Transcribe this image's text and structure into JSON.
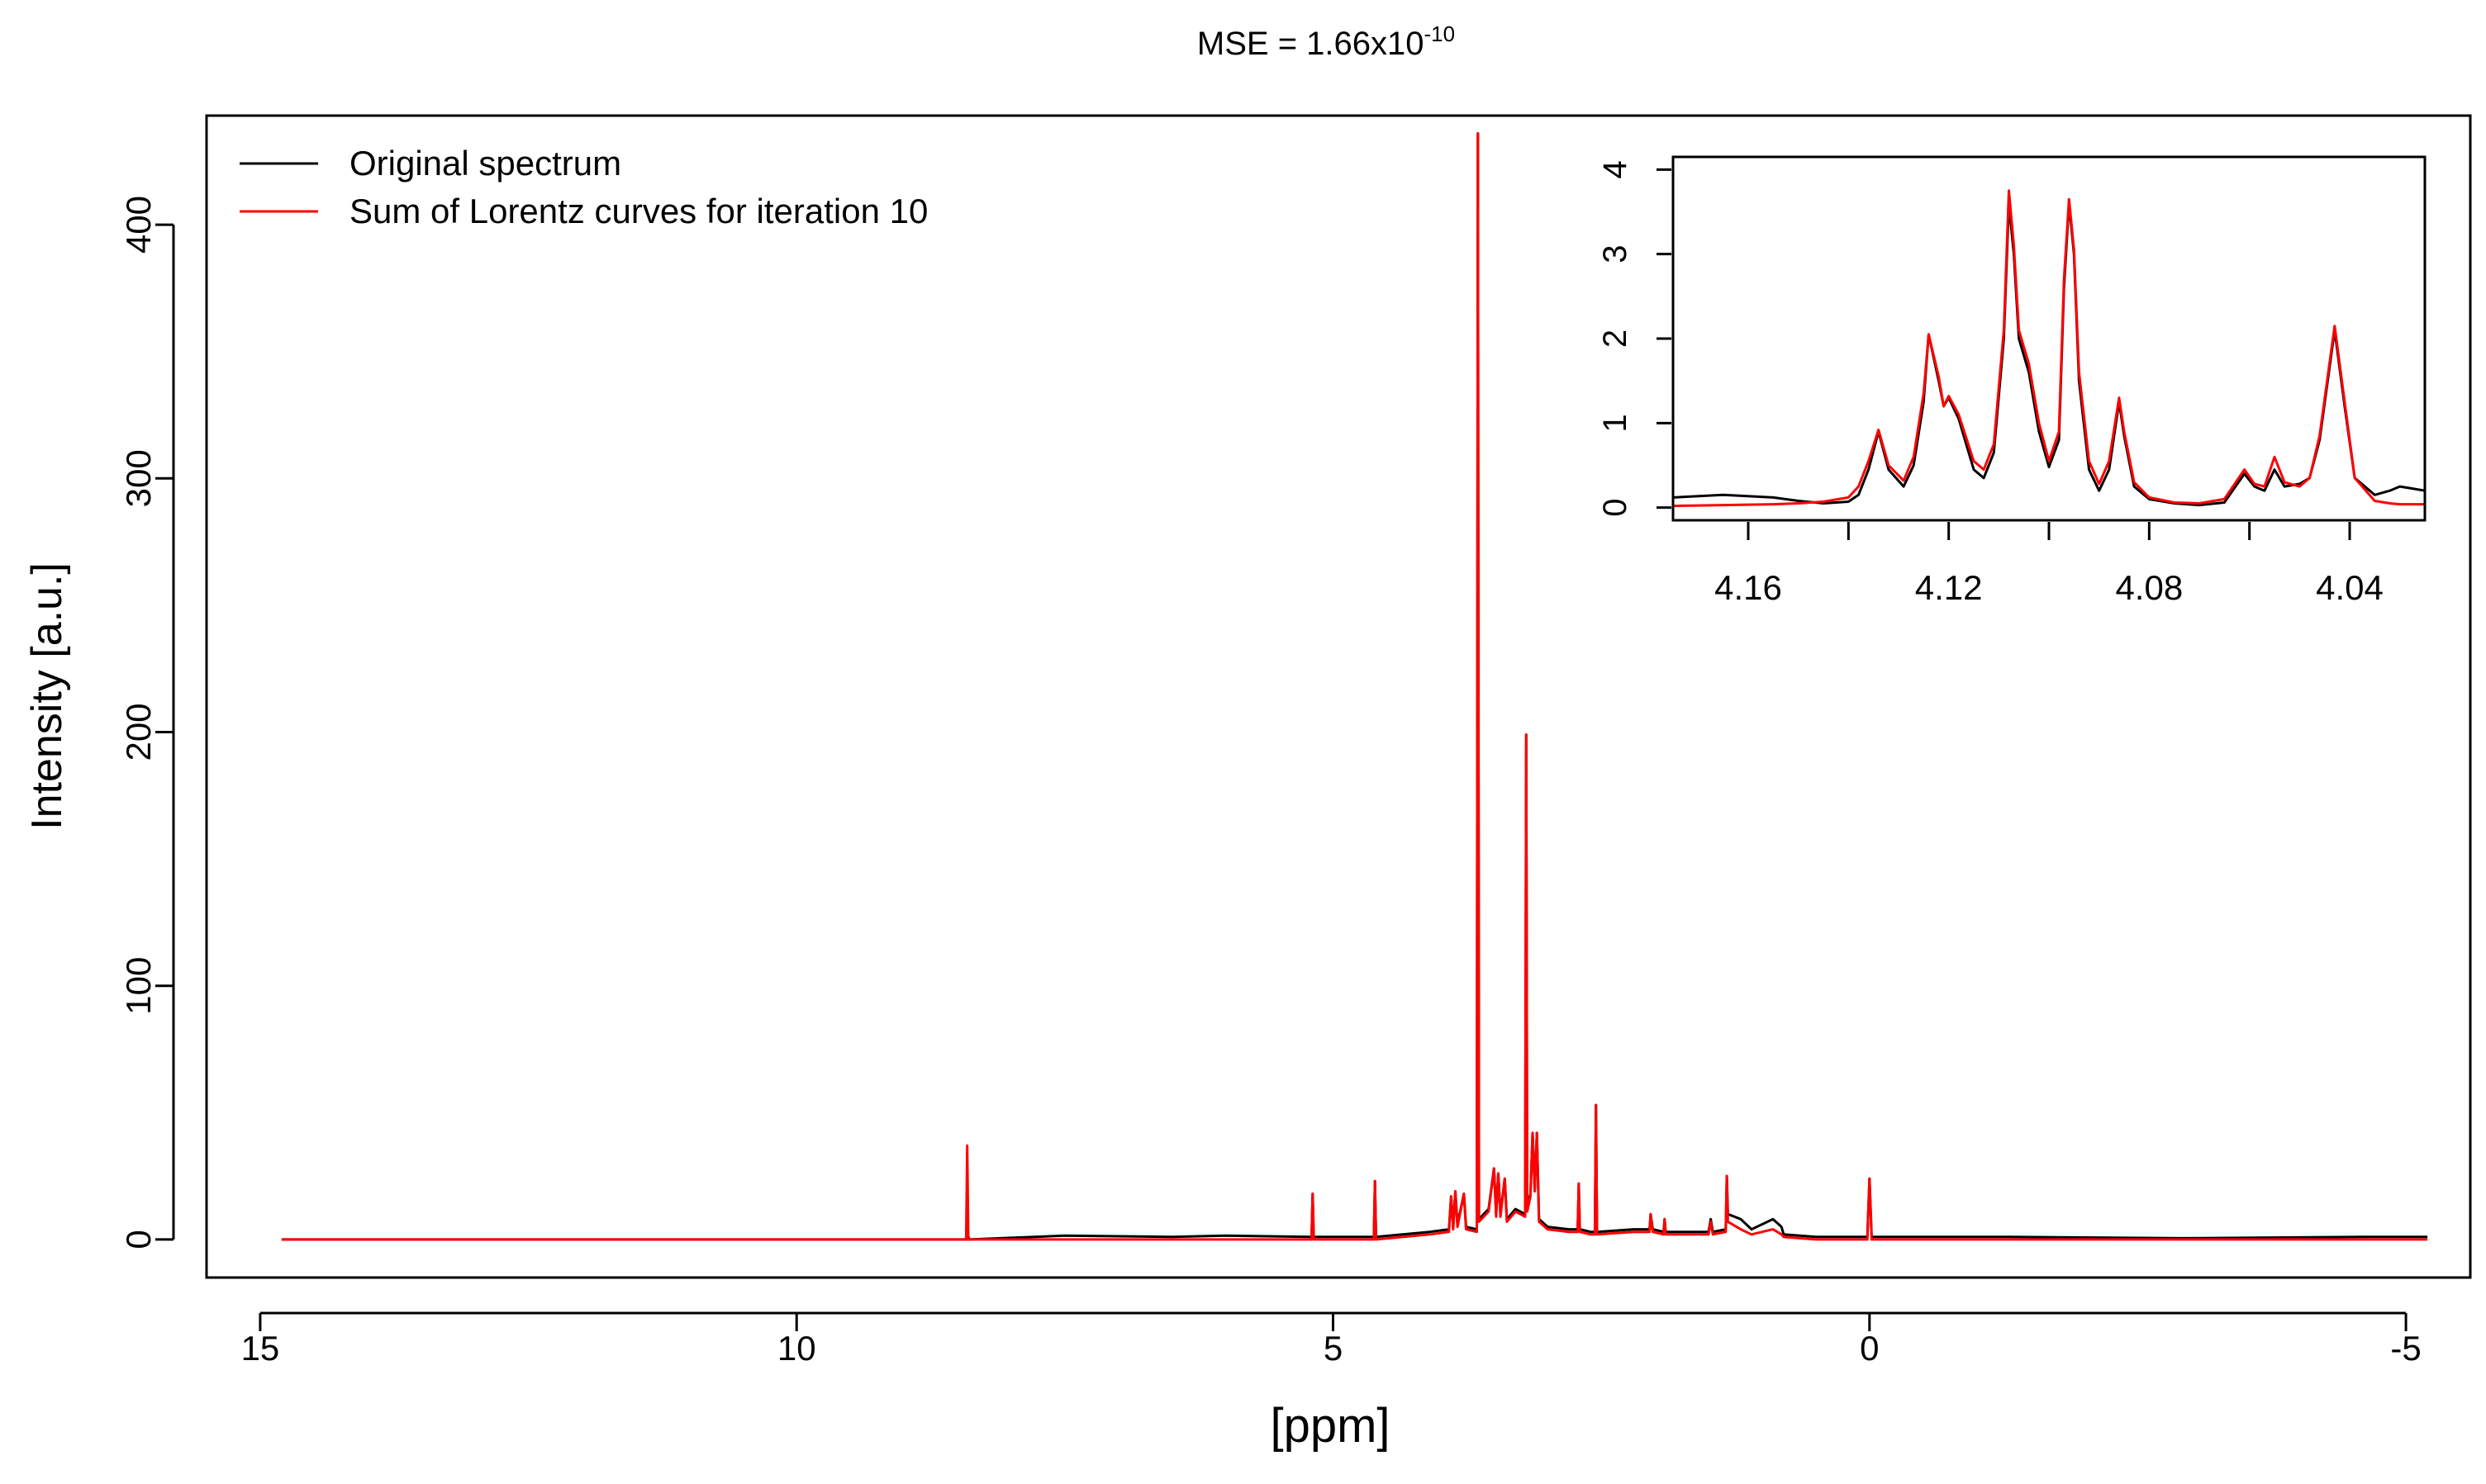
{
  "figure": {
    "title_prefix": "MSE = 1.66x10",
    "title_exponent": "-10",
    "legend": [
      {
        "label": "Original spectrum",
        "color": "#000000"
      },
      {
        "label": "Sum of Lorentz curves for iteration 10",
        "color": "#ff0000"
      }
    ]
  },
  "chart_data": [
    {
      "id": "main",
      "type": "line",
      "xlabel": "[ppm]",
      "ylabel": "Intensity [a.u.]",
      "xlim": [
        15.5,
        -5.6
      ],
      "ylim": [
        -15,
        443
      ],
      "x_reversed": true,
      "xticks": [
        15,
        10,
        5,
        0,
        -5
      ],
      "yticks": [
        0,
        100,
        200,
        300,
        400
      ],
      "legend_position": "top-left",
      "series": [
        {
          "name": "Original spectrum",
          "color": "#000000",
          "points": [
            [
              14.8,
              0
            ],
            [
              8.4,
              0
            ],
            [
              8.4,
              1.2
            ],
            [
              8.39,
              0
            ],
            [
              7.5,
              1.5
            ],
            [
              6.5,
              1
            ],
            [
              6.0,
              1.5
            ],
            [
              5.2,
              1
            ],
            [
              5.19,
              18
            ],
            [
              5.18,
              1
            ],
            [
              4.62,
              1
            ],
            [
              4.61,
              23
            ],
            [
              4.6,
              1
            ],
            [
              4.1,
              3
            ],
            [
              3.92,
              4
            ],
            [
              3.9,
              17
            ],
            [
              3.88,
              5
            ],
            [
              3.86,
              19
            ],
            [
              3.84,
              6
            ],
            [
              3.78,
              18
            ],
            [
              3.76,
              5
            ],
            [
              3.66,
              4
            ],
            [
              3.65,
              436
            ],
            [
              3.64,
              8
            ],
            [
              3.55,
              12
            ],
            [
              3.5,
              28
            ],
            [
              3.48,
              10
            ],
            [
              3.46,
              26
            ],
            [
              3.44,
              10
            ],
            [
              3.4,
              24
            ],
            [
              3.38,
              8
            ],
            [
              3.3,
              12
            ],
            [
              3.21,
              10
            ],
            [
              3.2,
              199
            ],
            [
              3.19,
              12
            ],
            [
              3.16,
              18
            ],
            [
              3.14,
              42
            ],
            [
              3.12,
              20
            ],
            [
              3.1,
              42
            ],
            [
              3.08,
              8
            ],
            [
              3.0,
              5
            ],
            [
              2.8,
              4
            ],
            [
              2.72,
              4
            ],
            [
              2.71,
              22
            ],
            [
              2.7,
              4
            ],
            [
              2.6,
              3
            ],
            [
              2.56,
              3
            ],
            [
              2.55,
              53
            ],
            [
              2.54,
              3
            ],
            [
              2.2,
              4
            ],
            [
              2.05,
              4
            ],
            [
              2.04,
              10
            ],
            [
              2.02,
              4
            ],
            [
              1.92,
              3
            ],
            [
              1.91,
              8
            ],
            [
              1.9,
              3
            ],
            [
              1.5,
              3
            ],
            [
              1.48,
              8
            ],
            [
              1.46,
              3
            ],
            [
              1.34,
              4
            ],
            [
              1.33,
              25
            ],
            [
              1.32,
              10
            ],
            [
              1.2,
              8
            ],
            [
              1.1,
              4
            ],
            [
              1.0,
              6
            ],
            [
              0.9,
              8
            ],
            [
              0.82,
              5
            ],
            [
              0.8,
              2
            ],
            [
              0.5,
              1
            ],
            [
              0.02,
              1
            ],
            [
              0.0,
              24
            ],
            [
              -0.02,
              1
            ],
            [
              -0.5,
              1
            ],
            [
              -1.3,
              1
            ],
            [
              -2.9,
              0.5
            ],
            [
              -4.6,
              1
            ],
            [
              -5.2,
              1
            ]
          ]
        },
        {
          "name": "Sum of Lorentz curves for iteration 10",
          "color": "#ff0000",
          "points": [
            [
              14.8,
              0
            ],
            [
              8.42,
              0
            ],
            [
              8.41,
              37
            ],
            [
              8.4,
              0
            ],
            [
              5.2,
              0
            ],
            [
              5.19,
              18
            ],
            [
              5.18,
              0
            ],
            [
              4.62,
              0
            ],
            [
              4.61,
              23
            ],
            [
              4.6,
              0
            ],
            [
              4.1,
              2
            ],
            [
              3.92,
              3
            ],
            [
              3.9,
              17
            ],
            [
              3.88,
              4
            ],
            [
              3.86,
              19
            ],
            [
              3.84,
              5
            ],
            [
              3.78,
              18
            ],
            [
              3.76,
              4
            ],
            [
              3.66,
              3
            ],
            [
              3.65,
              436
            ],
            [
              3.64,
              7
            ],
            [
              3.55,
              11
            ],
            [
              3.5,
              28
            ],
            [
              3.48,
              9
            ],
            [
              3.46,
              26
            ],
            [
              3.44,
              9
            ],
            [
              3.4,
              24
            ],
            [
              3.38,
              7
            ],
            [
              3.3,
              11
            ],
            [
              3.21,
              9
            ],
            [
              3.2,
              199
            ],
            [
              3.19,
              11
            ],
            [
              3.16,
              17
            ],
            [
              3.14,
              42
            ],
            [
              3.12,
              19
            ],
            [
              3.1,
              42
            ],
            [
              3.08,
              7
            ],
            [
              3.0,
              4
            ],
            [
              2.8,
              3
            ],
            [
              2.72,
              3
            ],
            [
              2.71,
              22
            ],
            [
              2.7,
              3
            ],
            [
              2.6,
              2
            ],
            [
              2.56,
              2
            ],
            [
              2.55,
              53
            ],
            [
              2.54,
              2
            ],
            [
              2.2,
              3
            ],
            [
              2.05,
              3
            ],
            [
              2.04,
              10
            ],
            [
              2.02,
              3
            ],
            [
              1.92,
              2
            ],
            [
              1.91,
              8
            ],
            [
              1.9,
              2
            ],
            [
              1.5,
              2
            ],
            [
              1.48,
              7
            ],
            [
              1.46,
              2
            ],
            [
              1.34,
              3
            ],
            [
              1.33,
              25
            ],
            [
              1.32,
              7
            ],
            [
              1.2,
              4
            ],
            [
              1.1,
              2
            ],
            [
              1.0,
              3
            ],
            [
              0.9,
              4
            ],
            [
              0.82,
              2
            ],
            [
              0.8,
              1
            ],
            [
              0.5,
              0
            ],
            [
              0.02,
              0
            ],
            [
              0.0,
              24
            ],
            [
              -0.02,
              0
            ],
            [
              -5.2,
              0
            ]
          ]
        }
      ]
    },
    {
      "id": "inset",
      "type": "line",
      "xlim": [
        4.175,
        4.025
      ],
      "ylim": [
        -0.15,
        4.15
      ],
      "x_reversed": true,
      "xticks": [
        4.16,
        4.12,
        4.08,
        4.04
      ],
      "xticks_minor": [
        4.14,
        4.1,
        4.06
      ],
      "yticks": [
        0,
        1,
        2,
        3,
        4
      ],
      "series": [
        {
          "name": "Original spectrum",
          "color": "#000000",
          "points": [
            [
              4.175,
              0.12
            ],
            [
              4.165,
              0.15
            ],
            [
              4.155,
              0.12
            ],
            [
              4.15,
              0.08
            ],
            [
              4.145,
              0.05
            ],
            [
              4.14,
              0.07
            ],
            [
              4.138,
              0.15
            ],
            [
              4.136,
              0.45
            ],
            [
              4.134,
              0.9
            ],
            [
              4.132,
              0.45
            ],
            [
              4.129,
              0.25
            ],
            [
              4.127,
              0.5
            ],
            [
              4.125,
              1.25
            ],
            [
              4.124,
              2.05
            ],
            [
              4.122,
              1.5
            ],
            [
              4.121,
              1.2
            ],
            [
              4.12,
              1.3
            ],
            [
              4.118,
              1.05
            ],
            [
              4.115,
              0.45
            ],
            [
              4.113,
              0.35
            ],
            [
              4.111,
              0.65
            ],
            [
              4.109,
              2.0
            ],
            [
              4.108,
              3.6
            ],
            [
              4.107,
              3.0
            ],
            [
              4.106,
              2.0
            ],
            [
              4.104,
              1.6
            ],
            [
              4.102,
              0.9
            ],
            [
              4.1,
              0.48
            ],
            [
              4.098,
              0.8
            ],
            [
              4.097,
              2.6
            ],
            [
              4.096,
              3.6
            ],
            [
              4.095,
              3.0
            ],
            [
              4.094,
              1.5
            ],
            [
              4.092,
              0.45
            ],
            [
              4.09,
              0.2
            ],
            [
              4.088,
              0.45
            ],
            [
              4.086,
              1.25
            ],
            [
              4.085,
              0.85
            ],
            [
              4.083,
              0.25
            ],
            [
              4.08,
              0.1
            ],
            [
              4.075,
              0.05
            ],
            [
              4.07,
              0.03
            ],
            [
              4.065,
              0.06
            ],
            [
              4.061,
              0.4
            ],
            [
              4.059,
              0.25
            ],
            [
              4.057,
              0.2
            ],
            [
              4.055,
              0.45
            ],
            [
              4.053,
              0.25
            ],
            [
              4.05,
              0.28
            ],
            [
              4.048,
              0.35
            ],
            [
              4.046,
              0.8
            ],
            [
              4.043,
              2.1
            ],
            [
              4.041,
              1.2
            ],
            [
              4.039,
              0.35
            ],
            [
              4.035,
              0.15
            ],
            [
              4.032,
              0.2
            ],
            [
              4.03,
              0.25
            ],
            [
              4.027,
              0.22
            ],
            [
              4.025,
              0.2
            ]
          ]
        },
        {
          "name": "Sum of Lorentz curves for iteration 10",
          "color": "#ff0000",
          "points": [
            [
              4.175,
              0.02
            ],
            [
              4.165,
              0.03
            ],
            [
              4.155,
              0.04
            ],
            [
              4.15,
              0.05
            ],
            [
              4.145,
              0.07
            ],
            [
              4.14,
              0.12
            ],
            [
              4.138,
              0.25
            ],
            [
              4.136,
              0.55
            ],
            [
              4.134,
              0.92
            ],
            [
              4.132,
              0.5
            ],
            [
              4.129,
              0.32
            ],
            [
              4.127,
              0.6
            ],
            [
              4.125,
              1.35
            ],
            [
              4.124,
              2.05
            ],
            [
              4.122,
              1.55
            ],
            [
              4.121,
              1.2
            ],
            [
              4.12,
              1.32
            ],
            [
              4.118,
              1.1
            ],
            [
              4.115,
              0.55
            ],
            [
              4.113,
              0.45
            ],
            [
              4.111,
              0.75
            ],
            [
              4.109,
              2.1
            ],
            [
              4.108,
              3.75
            ],
            [
              4.107,
              3.1
            ],
            [
              4.106,
              2.1
            ],
            [
              4.104,
              1.7
            ],
            [
              4.102,
              1.0
            ],
            [
              4.1,
              0.55
            ],
            [
              4.098,
              0.9
            ],
            [
              4.097,
              2.7
            ],
            [
              4.096,
              3.65
            ],
            [
              4.095,
              3.05
            ],
            [
              4.094,
              1.6
            ],
            [
              4.092,
              0.55
            ],
            [
              4.09,
              0.28
            ],
            [
              4.088,
              0.55
            ],
            [
              4.086,
              1.3
            ],
            [
              4.085,
              0.9
            ],
            [
              4.083,
              0.3
            ],
            [
              4.08,
              0.12
            ],
            [
              4.075,
              0.06
            ],
            [
              4.07,
              0.05
            ],
            [
              4.065,
              0.1
            ],
            [
              4.061,
              0.45
            ],
            [
              4.059,
              0.28
            ],
            [
              4.057,
              0.25
            ],
            [
              4.055,
              0.6
            ],
            [
              4.053,
              0.3
            ],
            [
              4.05,
              0.25
            ],
            [
              4.048,
              0.35
            ],
            [
              4.046,
              0.85
            ],
            [
              4.043,
              2.15
            ],
            [
              4.041,
              1.25
            ],
            [
              4.039,
              0.35
            ],
            [
              4.035,
              0.08
            ],
            [
              4.032,
              0.05
            ],
            [
              4.03,
              0.04
            ],
            [
              4.027,
              0.04
            ],
            [
              4.025,
              0.04
            ]
          ]
        }
      ]
    }
  ]
}
